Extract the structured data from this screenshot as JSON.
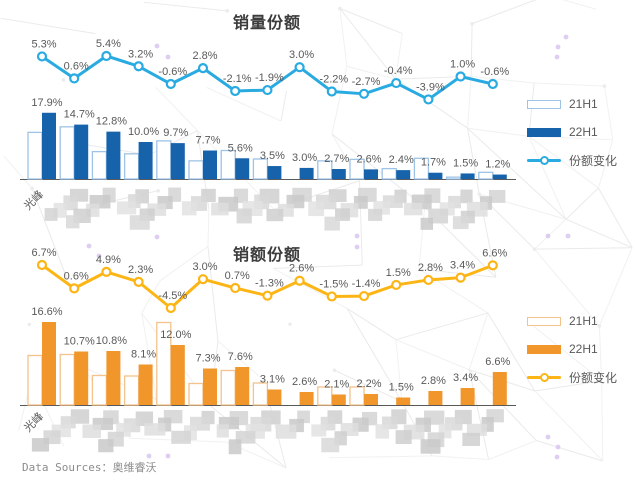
{
  "footer": {
    "source_text": "Data Sources：奥维睿沃"
  },
  "chart_data": [
    {
      "type": "bar+line",
      "title": "销量份额",
      "unit": "%",
      "categories": [
        "光峰"
      ],
      "censored_category_count": 14,
      "legend_position": "right",
      "bar_axis_range": [
        0,
        18
      ],
      "line_axis_range": [
        -4.5,
        6
      ],
      "series": [
        {
          "name": "21H1",
          "type": "bar",
          "style": "outline",
          "note": "values estimated from bar heights (22H1 minus 份额变化)",
          "values": [
            12.6,
            14.1,
            7.4,
            6.8,
            10.3,
            4.9,
            7.7,
            5.4,
            0,
            4.9,
            5.3,
            2.8,
            5.6,
            0.5,
            1.8
          ]
        },
        {
          "name": "22H1",
          "type": "bar",
          "style": "solid",
          "values": [
            17.9,
            14.7,
            12.8,
            10.0,
            9.7,
            7.7,
            5.6,
            3.5,
            3.0,
            2.7,
            2.6,
            2.4,
            1.7,
            1.5,
            1.2
          ]
        },
        {
          "name": "份额变化",
          "type": "line",
          "values": [
            5.3,
            0.6,
            5.4,
            3.2,
            -0.6,
            2.8,
            -2.1,
            -1.9,
            3.0,
            -2.2,
            -2.7,
            -0.4,
            -3.9,
            1.0,
            -0.6
          ]
        }
      ],
      "colors": {
        "bar_solid": "#1663ac",
        "bar_outline": "#9dc3e6",
        "line": "#29abe2"
      }
    },
    {
      "type": "bar+line",
      "title": "销额份额",
      "unit": "%",
      "categories": [
        "光峰"
      ],
      "censored_category_count": 14,
      "legend_position": "right",
      "bar_axis_range": [
        0,
        17
      ],
      "line_axis_range": [
        -5,
        7
      ],
      "series": [
        {
          "name": "21H1",
          "type": "bar",
          "style": "outline",
          "note": "values estimated from bar heights (22H1 minus 份额变化)",
          "values": [
            9.9,
            10.1,
            5.9,
            5.8,
            16.5,
            4.3,
            6.9,
            4.4,
            0,
            3.6,
            3.6,
            0,
            0,
            0,
            0
          ]
        },
        {
          "name": "22H1",
          "type": "bar",
          "style": "solid",
          "values": [
            16.6,
            10.7,
            10.8,
            8.1,
            12.0,
            7.3,
            7.6,
            3.1,
            2.6,
            2.1,
            2.2,
            1.5,
            2.8,
            3.4,
            6.6
          ]
        },
        {
          "name": "份额变化",
          "type": "line",
          "values": [
            6.7,
            0.6,
            4.9,
            2.3,
            -4.5,
            3.0,
            0.7,
            -1.3,
            2.6,
            -1.5,
            -1.4,
            1.5,
            2.8,
            3.4,
            6.6
          ]
        }
      ],
      "colors": {
        "bar_solid": "#f0962b",
        "bar_outline": "#f3c38b",
        "line": "#fcb515"
      }
    }
  ]
}
